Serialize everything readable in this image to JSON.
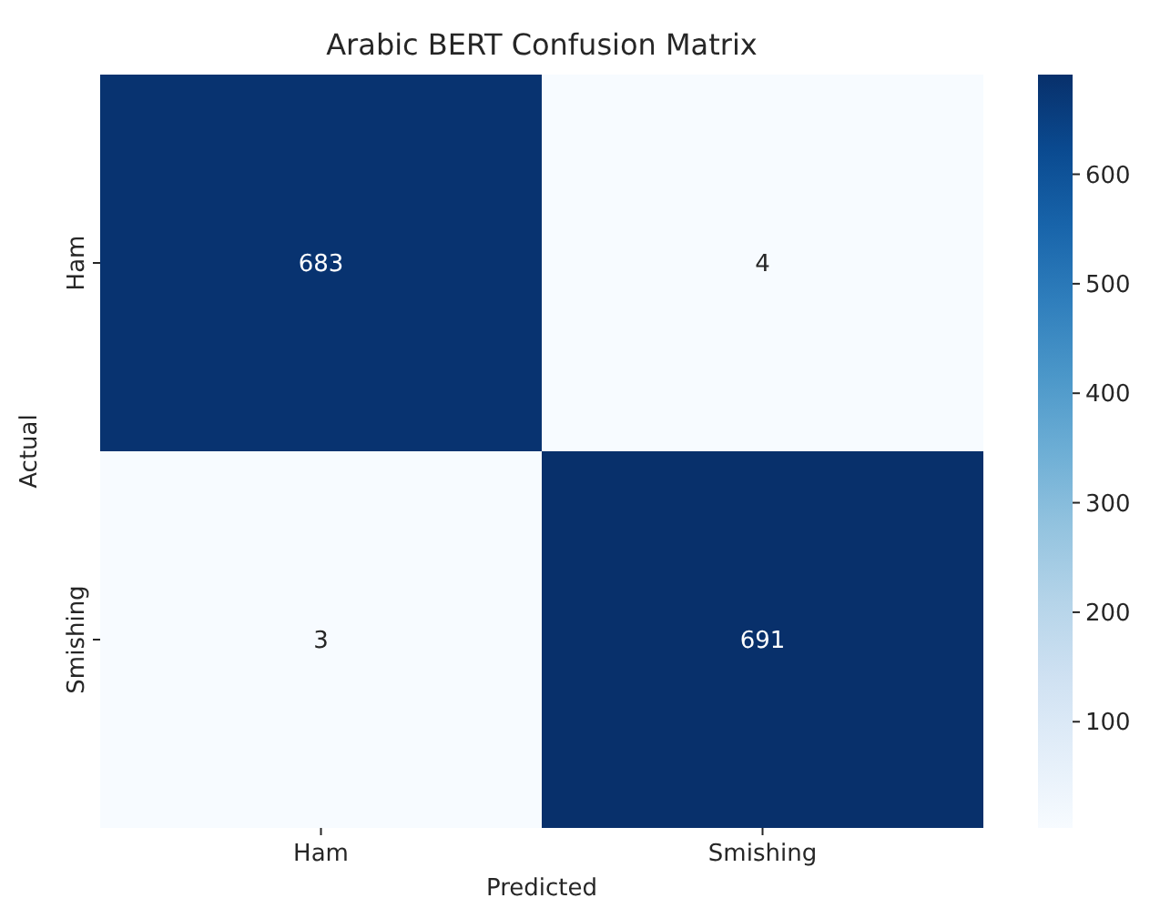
{
  "chart_data": {
    "type": "heatmap",
    "title": "Arabic BERT Confusion Matrix",
    "xlabel": "Predicted",
    "ylabel": "Actual",
    "categories": [
      "Ham",
      "Smishing"
    ],
    "y_categories": [
      "Ham",
      "Smishing"
    ],
    "cells": [
      [
        683,
        4
      ],
      [
        3,
        691
      ]
    ],
    "data_labels": true,
    "clim": [
      3,
      691
    ],
    "cticks": [
      100,
      200,
      300,
      400,
      500,
      600
    ]
  }
}
